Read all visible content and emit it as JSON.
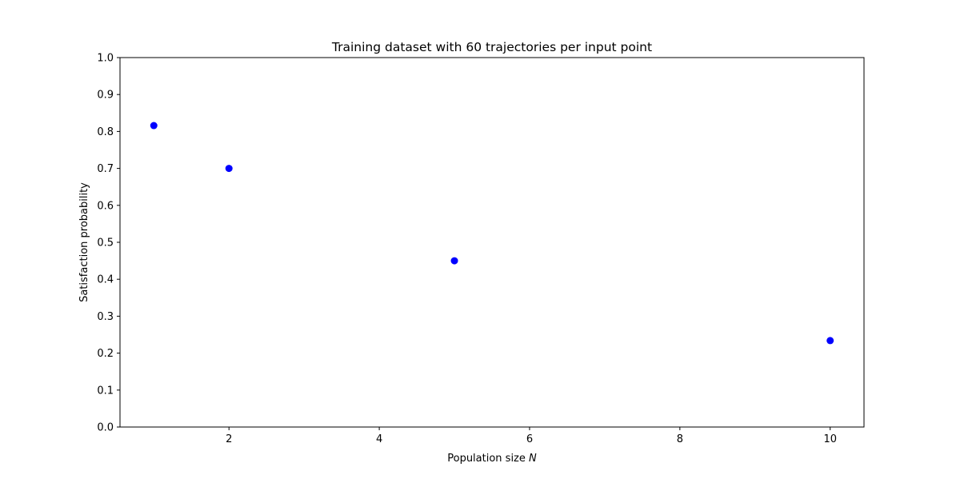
{
  "chart_data": {
    "type": "scatter",
    "title": "Training dataset with 60 trajectories per input point",
    "xlabel": "Population size",
    "xlabel_symbol": "N",
    "ylabel": "Satisfaction probability",
    "xlim": [
      0.55,
      10.45
    ],
    "ylim": [
      0.0,
      1.0
    ],
    "xticks": [
      "2",
      "4",
      "6",
      "8",
      "10"
    ],
    "yticks": [
      "0.0",
      "0.1",
      "0.2",
      "0.3",
      "0.4",
      "0.5",
      "0.6",
      "0.7",
      "0.8",
      "0.9",
      "1.0"
    ],
    "grid": false,
    "series": [
      {
        "color": "#0000ff",
        "marker": "circle",
        "x": [
          1,
          2,
          5,
          10
        ],
        "y": [
          0.816,
          0.7,
          0.45,
          0.234
        ]
      }
    ]
  }
}
